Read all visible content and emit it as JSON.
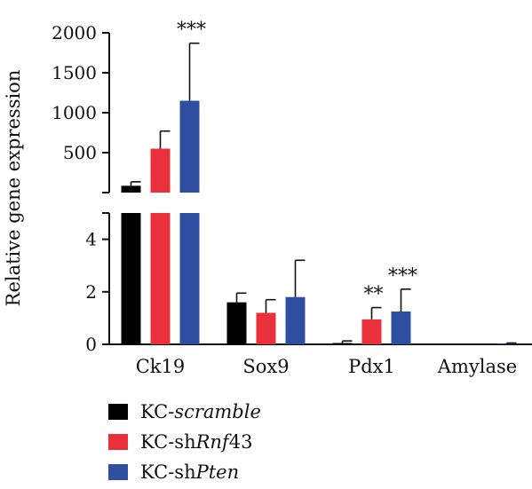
{
  "chart_data": {
    "type": "bar",
    "ylabel": "Relative gene expression",
    "categories": [
      "Ck19",
      "Sox9",
      "Pdx1",
      "Amylase"
    ],
    "axis_break": true,
    "y_lower": {
      "range": [
        0,
        5
      ],
      "ticks": [
        "0",
        "2",
        "4"
      ]
    },
    "y_upper": {
      "range": [
        0,
        2000
      ],
      "ticks": [
        "500",
        "1000",
        "1500",
        "2000"
      ]
    },
    "series": [
      {
        "name": "KC-scramble",
        "name_prefix": "KC-",
        "name_italic": "scramble",
        "name_suffix": "",
        "color": "#000000",
        "values": [
          85,
          1.6,
          0.05,
          0.0
        ],
        "errors": [
          50,
          0.35,
          0.08,
          0.0
        ]
      },
      {
        "name": "KC-shRnf43",
        "name_prefix": "KC-sh",
        "name_italic": "Rnf",
        "name_suffix": "43",
        "color": "#e8313a",
        "values": [
          550,
          1.2,
          0.95,
          0.0
        ],
        "errors": [
          220,
          0.5,
          0.45,
          0.0
        ]
      },
      {
        "name": "KC-shPten",
        "name_prefix": "KC-sh",
        "name_italic": "Pten",
        "name_suffix": "",
        "color": "#2e4fa0",
        "values": [
          1150,
          1.8,
          1.25,
          0.02
        ],
        "errors": [
          720,
          1.4,
          0.85,
          0.03
        ]
      }
    ],
    "annotations": [
      {
        "category": "Ck19",
        "series": "KC-shPten",
        "text": "***"
      },
      {
        "category": "Pdx1",
        "series": "KC-shRnf43",
        "text": "**"
      },
      {
        "category": "Pdx1",
        "series": "KC-shPten",
        "text": "***"
      }
    ]
  }
}
